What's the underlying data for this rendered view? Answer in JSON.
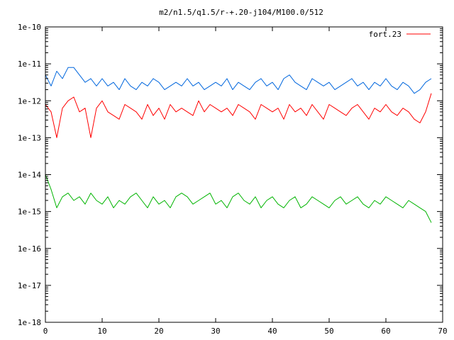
{
  "chart_data": {
    "type": "line",
    "title": "m2/n1.5/q1.5/r-+.20-j104/M100.0/512",
    "xlabel": "",
    "ylabel": "",
    "xlim": [
      0,
      70
    ],
    "ylim_exp": [
      -18,
      -10
    ],
    "yscale": "log",
    "grid": false,
    "legend_position": "top-right",
    "x_ticks": [
      {
        "value": 0,
        "label": "0"
      },
      {
        "value": 10,
        "label": "10"
      },
      {
        "value": 20,
        "label": "20"
      },
      {
        "value": 30,
        "label": "30"
      },
      {
        "value": 40,
        "label": "40"
      },
      {
        "value": 50,
        "label": "50"
      },
      {
        "value": 60,
        "label": "60"
      },
      {
        "value": 70,
        "label": "70"
      }
    ],
    "y_ticks": [
      {
        "exp": -10,
        "label": "1e-10"
      },
      {
        "exp": -11,
        "label": "1e-11"
      },
      {
        "exp": -12,
        "label": "1e-12"
      },
      {
        "exp": -13,
        "label": "1e-13"
      },
      {
        "exp": -14,
        "label": "1e-14"
      },
      {
        "exp": -15,
        "label": "1e-15"
      },
      {
        "exp": -16,
        "label": "1e-16"
      },
      {
        "exp": -17,
        "label": "1e-17"
      },
      {
        "exp": -18,
        "label": "1e-18"
      }
    ],
    "series": [
      {
        "name": "fort.23",
        "color": "#ff0000",
        "in_legend": true,
        "x": [
          0,
          1,
          2,
          3,
          4,
          5,
          6,
          7,
          8,
          9,
          10,
          11,
          12,
          13,
          14,
          15,
          16,
          17,
          18,
          19,
          20,
          21,
          22,
          23,
          24,
          25,
          26,
          27,
          28,
          29,
          30,
          31,
          32,
          33,
          34,
          35,
          36,
          37,
          38,
          39,
          40,
          41,
          42,
          43,
          44,
          45,
          46,
          47,
          48,
          49,
          50,
          51,
          52,
          53,
          54,
          55,
          56,
          57,
          58,
          59,
          60,
          61,
          62,
          63,
          64,
          65,
          66,
          67,
          68
        ],
        "y_exp": [
          -12.1,
          -12.3,
          -13.0,
          -12.2,
          -12.0,
          -11.9,
          -12.3,
          -12.2,
          -13.0,
          -12.2,
          -12.0,
          -12.3,
          -12.4,
          -12.5,
          -12.1,
          -12.2,
          -12.3,
          -12.5,
          -12.1,
          -12.4,
          -12.2,
          -12.5,
          -12.1,
          -12.3,
          -12.2,
          -12.3,
          -12.4,
          -12.0,
          -12.3,
          -12.1,
          -12.2,
          -12.3,
          -12.2,
          -12.4,
          -12.1,
          -12.2,
          -12.3,
          -12.5,
          -12.1,
          -12.2,
          -12.3,
          -12.2,
          -12.5,
          -12.1,
          -12.3,
          -12.2,
          -12.4,
          -12.1,
          -12.3,
          -12.5,
          -12.1,
          -12.2,
          -12.3,
          -12.4,
          -12.2,
          -12.1,
          -12.3,
          -12.5,
          -12.2,
          -12.3,
          -12.1,
          -12.3,
          -12.4,
          -12.2,
          -12.3,
          -12.5,
          -12.6,
          -12.3,
          -11.8
        ]
      },
      {
        "name": "",
        "color": "#0066dd",
        "in_legend": false,
        "x": [
          0,
          1,
          2,
          3,
          4,
          5,
          6,
          7,
          8,
          9,
          10,
          11,
          12,
          13,
          14,
          15,
          16,
          17,
          18,
          19,
          20,
          21,
          22,
          23,
          24,
          25,
          26,
          27,
          28,
          29,
          30,
          31,
          32,
          33,
          34,
          35,
          36,
          37,
          38,
          39,
          40,
          41,
          42,
          43,
          44,
          45,
          46,
          47,
          48,
          49,
          50,
          51,
          52,
          53,
          54,
          55,
          56,
          57,
          58,
          59,
          60,
          61,
          62,
          63,
          64,
          65,
          66,
          67,
          68
        ],
        "y_exp": [
          -11.3,
          -11.6,
          -11.2,
          -11.4,
          -11.1,
          -11.1,
          -11.3,
          -11.5,
          -11.4,
          -11.6,
          -11.4,
          -11.6,
          -11.5,
          -11.7,
          -11.4,
          -11.6,
          -11.7,
          -11.5,
          -11.6,
          -11.4,
          -11.5,
          -11.7,
          -11.6,
          -11.5,
          -11.6,
          -11.4,
          -11.6,
          -11.5,
          -11.7,
          -11.6,
          -11.5,
          -11.6,
          -11.4,
          -11.7,
          -11.5,
          -11.6,
          -11.7,
          -11.5,
          -11.4,
          -11.6,
          -11.5,
          -11.7,
          -11.4,
          -11.3,
          -11.5,
          -11.6,
          -11.7,
          -11.4,
          -11.5,
          -11.6,
          -11.5,
          -11.7,
          -11.6,
          -11.5,
          -11.4,
          -11.6,
          -11.5,
          -11.7,
          -11.5,
          -11.6,
          -11.4,
          -11.6,
          -11.7,
          -11.5,
          -11.6,
          -11.8,
          -11.7,
          -11.5,
          -11.4
        ]
      },
      {
        "name": "",
        "color": "#00b400",
        "in_legend": false,
        "x": [
          0,
          1,
          2,
          3,
          4,
          5,
          6,
          7,
          8,
          9,
          10,
          11,
          12,
          13,
          14,
          15,
          16,
          17,
          18,
          19,
          20,
          21,
          22,
          23,
          24,
          25,
          26,
          27,
          28,
          29,
          30,
          31,
          32,
          33,
          34,
          35,
          36,
          37,
          38,
          39,
          40,
          41,
          42,
          43,
          44,
          45,
          46,
          47,
          48,
          49,
          50,
          51,
          52,
          53,
          54,
          55,
          56,
          57,
          58,
          59,
          60,
          61,
          62,
          63,
          64,
          65,
          66,
          67,
          68
        ],
        "y_exp": [
          -14.0,
          -14.4,
          -14.9,
          -14.6,
          -14.5,
          -14.7,
          -14.6,
          -14.8,
          -14.5,
          -14.7,
          -14.8,
          -14.6,
          -14.9,
          -14.7,
          -14.8,
          -14.6,
          -14.5,
          -14.7,
          -14.9,
          -14.6,
          -14.8,
          -14.7,
          -14.9,
          -14.6,
          -14.5,
          -14.6,
          -14.8,
          -14.7,
          -14.6,
          -14.5,
          -14.8,
          -14.7,
          -14.9,
          -14.6,
          -14.5,
          -14.7,
          -14.8,
          -14.6,
          -14.9,
          -14.7,
          -14.6,
          -14.8,
          -14.9,
          -14.7,
          -14.6,
          -14.9,
          -14.8,
          -14.6,
          -14.7,
          -14.8,
          -14.9,
          -14.7,
          -14.6,
          -14.8,
          -14.7,
          -14.6,
          -14.8,
          -14.9,
          -14.7,
          -14.8,
          -14.6,
          -14.7,
          -14.8,
          -14.9,
          -14.7,
          -14.8,
          -14.9,
          -15.0,
          -15.3
        ]
      }
    ]
  }
}
